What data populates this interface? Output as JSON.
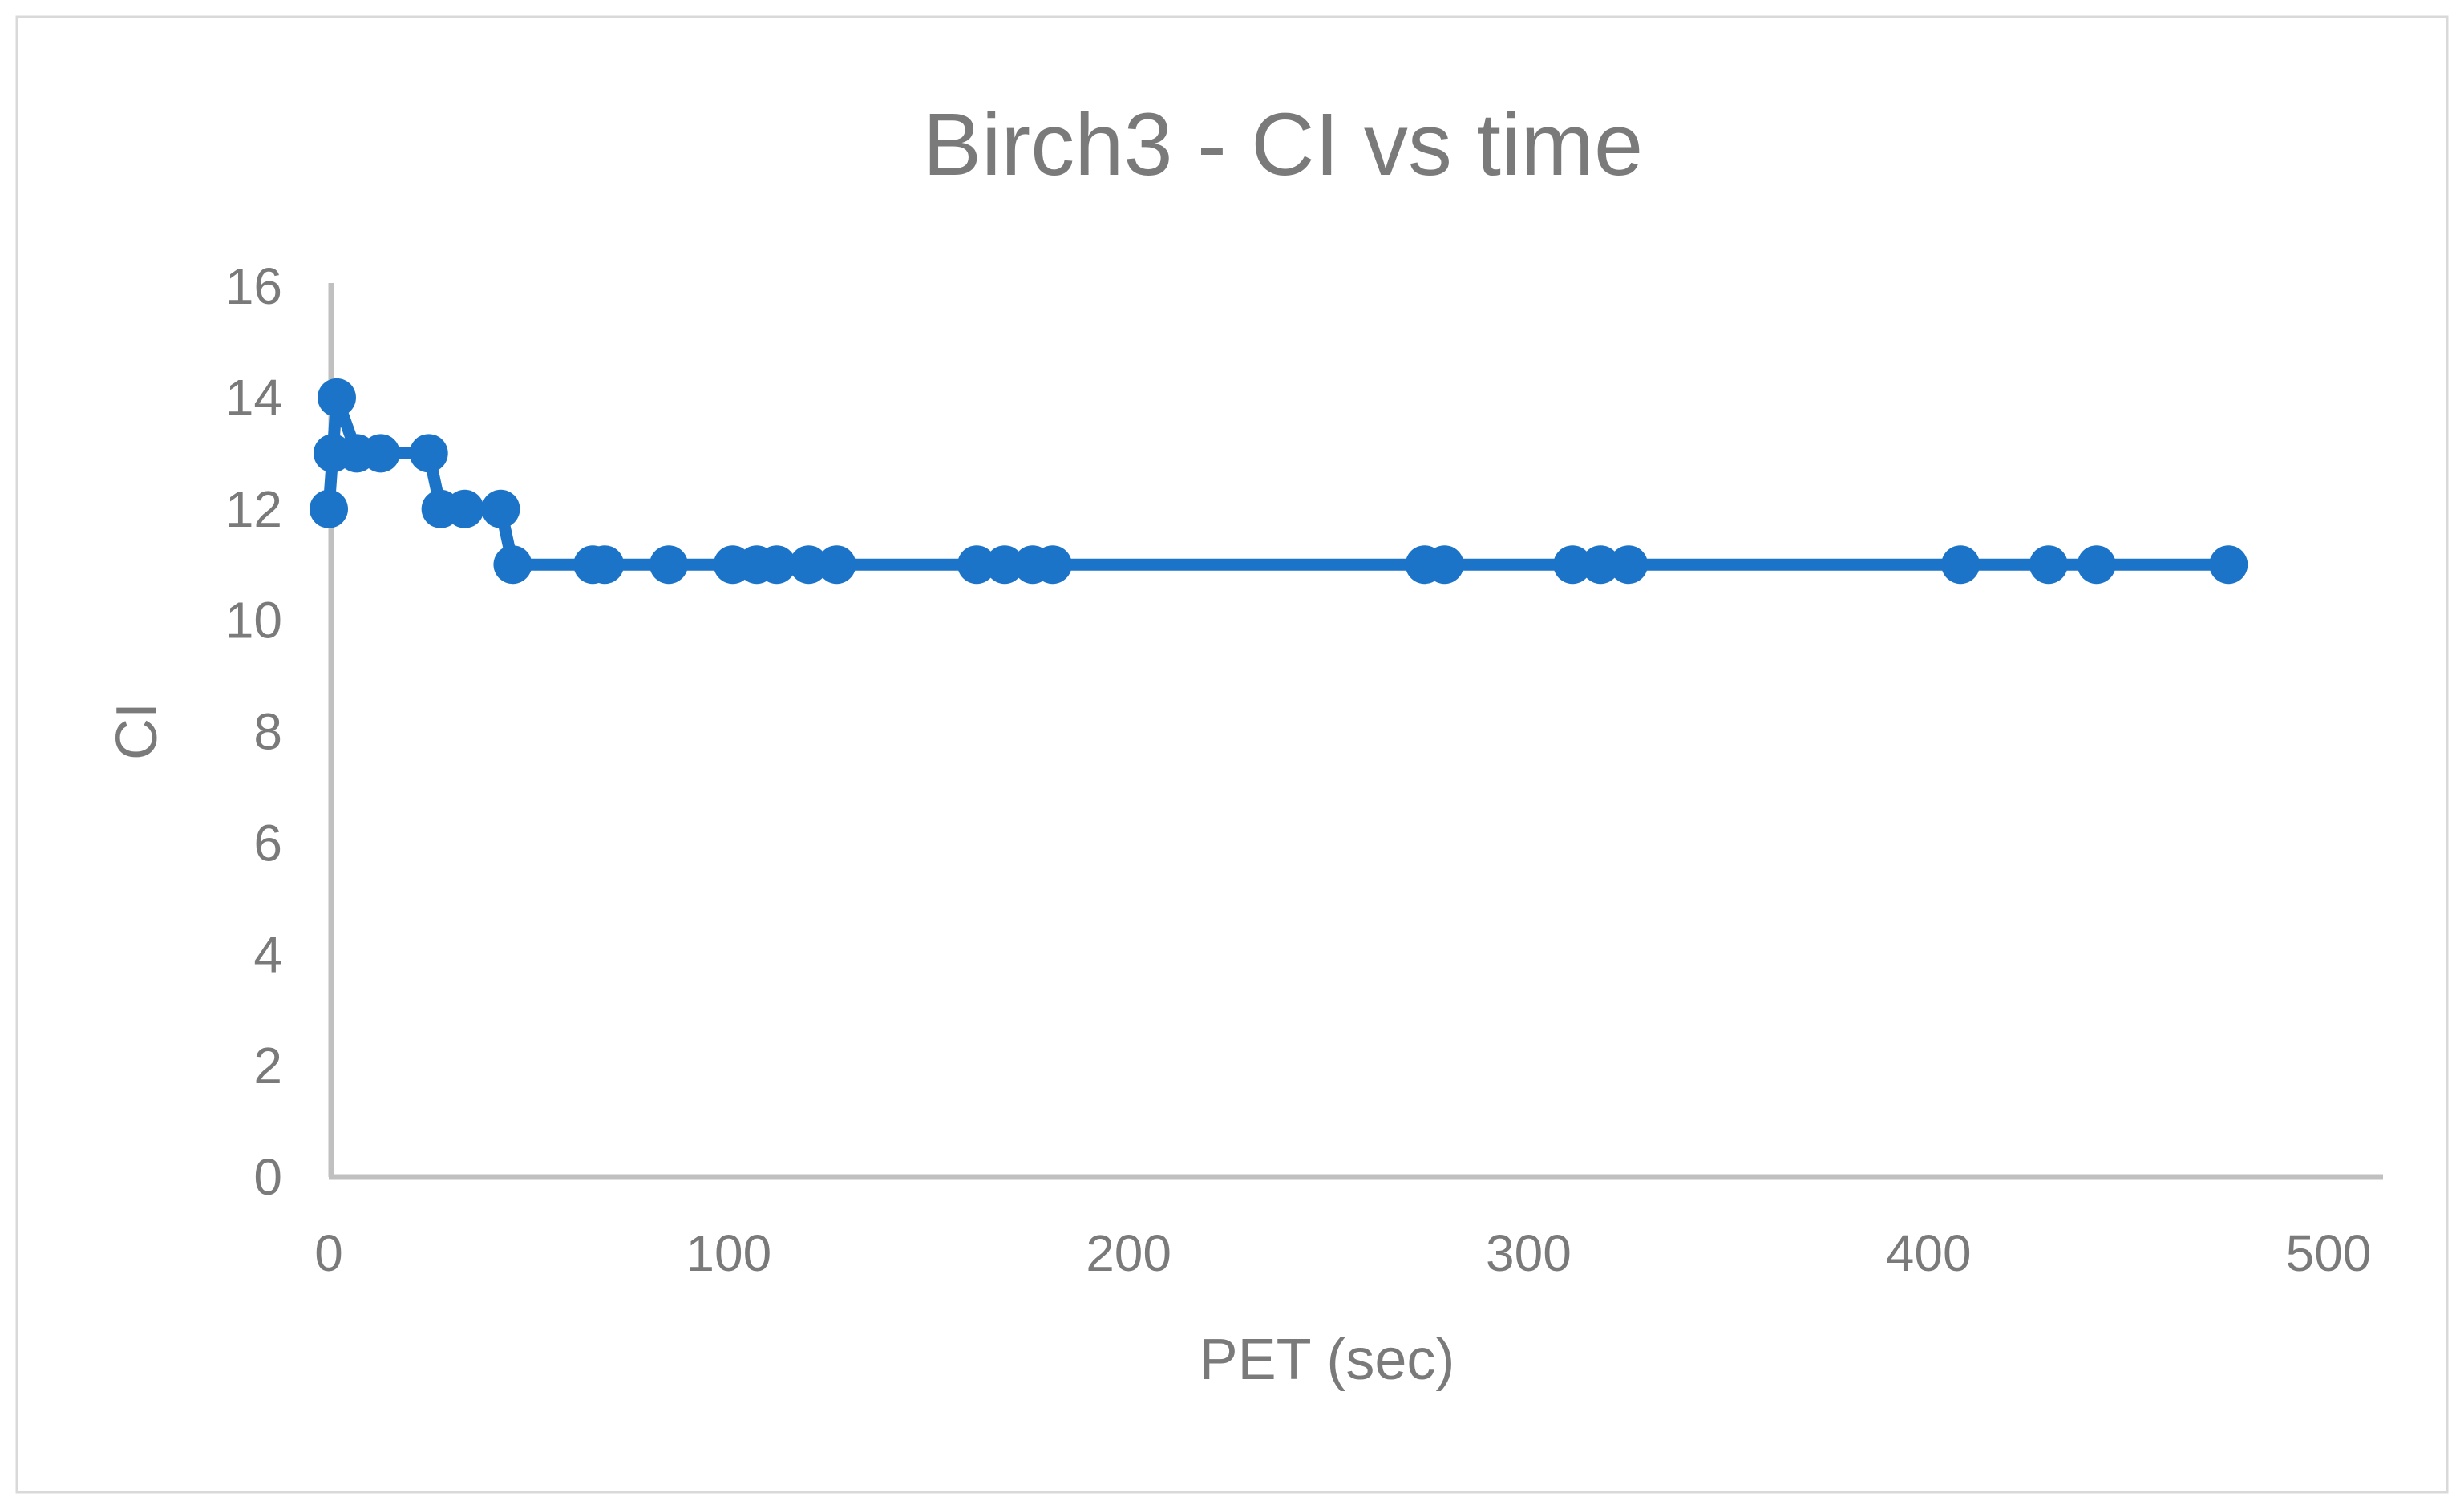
{
  "chart_data": {
    "type": "line",
    "title": "Birch3 - CI vs time",
    "xlabel": "PET (sec)",
    "ylabel": "CI",
    "xlim": [
      0,
      500
    ],
    "ylim": [
      0,
      16
    ],
    "x_ticks": [
      0,
      100,
      200,
      300,
      400,
      500
    ],
    "y_ticks": [
      0,
      2,
      4,
      6,
      8,
      10,
      12,
      14,
      16
    ],
    "grid": false,
    "legend": false,
    "marker_shape": "circle",
    "series": [
      {
        "name": "CI",
        "x": [
          0,
          1,
          2,
          7,
          13,
          25,
          28,
          34,
          43,
          46,
          66,
          69,
          85,
          101,
          107,
          112,
          120,
          127,
          162,
          169,
          176,
          181,
          274,
          279,
          311,
          318,
          325,
          408,
          430,
          442,
          475
        ],
        "y": [
          12,
          13,
          14,
          13,
          13,
          13,
          12,
          12,
          12,
          11,
          11,
          11,
          11,
          11,
          11,
          11,
          11,
          11,
          11,
          11,
          11,
          11,
          11,
          11,
          11,
          11,
          11,
          11,
          11,
          11,
          11
        ]
      }
    ],
    "colors": {
      "series": "#1C74C8",
      "text": "#7A7A7A",
      "axis": "#C0C0C0",
      "border": "#D9D9D9",
      "background": "#FFFFFF"
    }
  }
}
